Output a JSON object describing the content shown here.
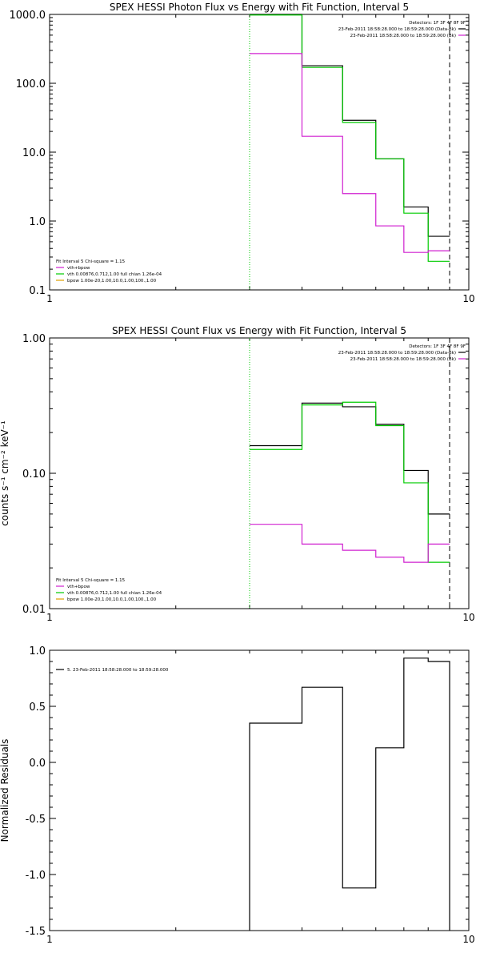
{
  "colors": {
    "axis": "#000000",
    "data": "#000000",
    "model_total": "#d020d0",
    "vth": "#00cc00",
    "bpow": "#e0a000",
    "background_series": "#d020d0"
  },
  "chart_data": [
    {
      "type": "line",
      "step": true,
      "title": "SPEX HESSI Photon Flux vs Energy with Fit Function, Interval 5",
      "xlabel": "",
      "ylabel": "",
      "xscale": "log",
      "yscale": "log",
      "xlim": [
        1,
        10
      ],
      "ylim": [
        0.1,
        1000
      ],
      "x_ticks": [
        "1",
        "10"
      ],
      "y_ticks": [
        "0.1",
        "1.0",
        "10.0",
        "100.0",
        "1000.0"
      ],
      "edges": [
        3,
        4,
        5,
        6,
        7,
        8,
        9
      ],
      "series": [
        {
          "name": "",
          "color_key": "data",
          "values": [
            1000,
            180,
            29,
            8,
            1.6,
            0.6
          ]
        },
        {
          "name": "vth",
          "color_key": "vth",
          "values": [
            980,
            170,
            27,
            8,
            1.3,
            0.26
          ]
        },
        {
          "name": "",
          "color_key": "model_total",
          "values": [
            270,
            17,
            2.5,
            0.85,
            0.35,
            0.37
          ]
        }
      ],
      "vlines": [
        {
          "x": 3,
          "style": "dotted",
          "color_key": "vth"
        },
        {
          "x": 9,
          "style": "dashed",
          "color_key": "data"
        }
      ],
      "legend_right": {
        "header": "Detectors: 1F 3F 4F 8F 9F",
        "lines": [
          {
            "text": "23-Feb-2011 18:58:28.000 to 18:59:28.000 (Data-Bk)",
            "color_key": "data"
          },
          {
            "text": "23-Feb-2011 18:58:28.000 to 18:59:28.000 (Bk)",
            "color_key": "background_series"
          }
        ]
      },
      "legend_left": {
        "header": "Fit Interval 5   Chi-square = 1.15",
        "lines": [
          {
            "text": "vth+bpow",
            "color_key": "model_total"
          },
          {
            "text": "vth 0.00876,0.712,1.00   full chian 1.26e-04",
            "color_key": "vth"
          },
          {
            "text": "bpow 1.00e-20,1.00,10.0,1.00,100.,1.00",
            "color_key": "bpow"
          }
        ]
      }
    },
    {
      "type": "line",
      "step": true,
      "title": "SPEX HESSI Count Flux vs Energy with Fit Function, Interval 5",
      "xlabel": "",
      "ylabel": "counts s⁻¹ cm⁻² keV⁻¹",
      "xscale": "log",
      "yscale": "log",
      "xlim": [
        1,
        10
      ],
      "ylim": [
        0.01,
        1
      ],
      "x_ticks": [
        "1",
        "10"
      ],
      "y_ticks": [
        "0.01",
        "0.10",
        "1.00"
      ],
      "edges": [
        3,
        4,
        5,
        6,
        7,
        8,
        9
      ],
      "series": [
        {
          "name": "",
          "color_key": "data",
          "values": [
            0.16,
            0.33,
            0.31,
            0.23,
            0.105,
            0.05
          ]
        },
        {
          "name": "vth",
          "color_key": "vth",
          "values": [
            0.15,
            0.32,
            0.335,
            0.225,
            0.085,
            0.022
          ]
        },
        {
          "name": "",
          "color_key": "model_total",
          "values": [
            0.042,
            0.03,
            0.027,
            0.024,
            0.022,
            0.03
          ]
        }
      ],
      "vlines": [
        {
          "x": 3,
          "style": "dotted",
          "color_key": "vth"
        },
        {
          "x": 9,
          "style": "dashed",
          "color_key": "data"
        }
      ],
      "legend_right": {
        "header": "Detectors: 1F 3F 4F 8F 9F",
        "lines": [
          {
            "text": "23-Feb-2011 18:58:28.000 to 18:59:28.000 (Data-Bk)",
            "color_key": "data"
          },
          {
            "text": "23-Feb-2011 18:58:28.000 to 18:59:28.000 (Bk)",
            "color_key": "background_series"
          }
        ]
      },
      "legend_left": {
        "header": "Fit Interval 5   Chi-square = 1.15",
        "lines": [
          {
            "text": "vth+bpow",
            "color_key": "model_total"
          },
          {
            "text": "vth 0.00876,0.712,1.00   full chian 1.26e-04",
            "color_key": "vth"
          },
          {
            "text": "bpow 1.00e-20,1.00,10.0,1.00,100.,1.00",
            "color_key": "bpow"
          }
        ]
      }
    },
    {
      "type": "line",
      "step": true,
      "title": "",
      "xlabel": "",
      "ylabel": "Normalized Residuals",
      "xscale": "log",
      "yscale": "linear",
      "xlim": [
        1,
        10
      ],
      "ylim": [
        -1.5,
        1.0
      ],
      "x_ticks": [
        "1",
        "10"
      ],
      "y_ticks": [
        "-1.5",
        "-1.0",
        "-0.5",
        "0.0",
        "0.5",
        "1.0"
      ],
      "edges": [
        3,
        4,
        5,
        6,
        7,
        8,
        9
      ],
      "series": [
        {
          "name": "",
          "color_key": "data",
          "values": [
            0.35,
            0.67,
            -1.12,
            0.13,
            0.93,
            0.9
          ]
        }
      ],
      "drop_ends_to_bottom": true,
      "vlines": [],
      "legend_right": null,
      "legend_left": {
        "header": "",
        "lines": [
          {
            "text": "5. 23-Feb-2011 18:58:28.000 to 18:59:28.000",
            "color_key": "data"
          }
        ]
      }
    }
  ]
}
